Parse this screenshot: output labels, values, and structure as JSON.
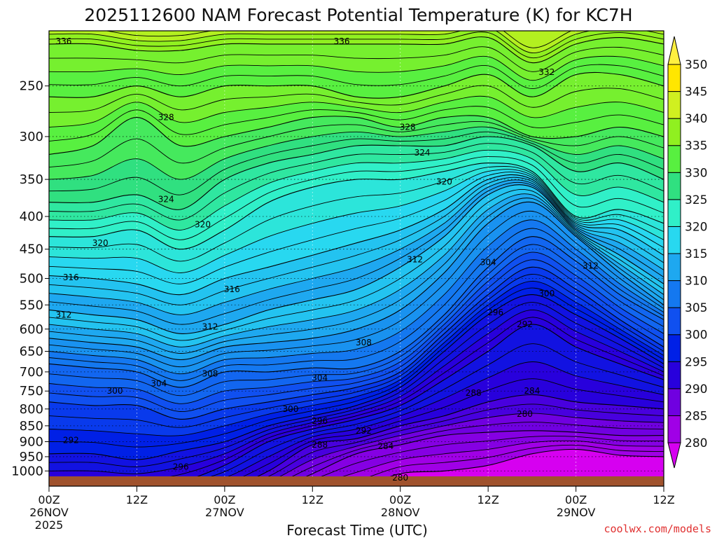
{
  "chart_data": {
    "type": "heatmap",
    "title": "2025112600 NAM Forecast Potential Temperature (K) for KC7H",
    "xlabel": "Forecast Time (UTC)",
    "ylabel": "",
    "credit": "coolwx.com/models",
    "y_scale": "log-pressure",
    "ylim": [
      1030,
      205
    ],
    "xlim_hours": [
      0,
      84
    ],
    "x_ticks": [
      {
        "hour": 0,
        "l1": "00Z",
        "l2": "26NOV",
        "l3": "2025"
      },
      {
        "hour": 12,
        "l1": "12Z",
        "l2": "",
        "l3": ""
      },
      {
        "hour": 24,
        "l1": "00Z",
        "l2": "27NOV",
        "l3": ""
      },
      {
        "hour": 36,
        "l1": "12Z",
        "l2": "",
        "l3": ""
      },
      {
        "hour": 48,
        "l1": "00Z",
        "l2": "28NOV",
        "l3": ""
      },
      {
        "hour": 60,
        "l1": "12Z",
        "l2": "",
        "l3": ""
      },
      {
        "hour": 72,
        "l1": "00Z",
        "l2": "29NOV",
        "l3": ""
      },
      {
        "hour": 84,
        "l1": "12Z",
        "l2": "",
        "l3": ""
      }
    ],
    "y_ticks": [
      "250",
      "300",
      "350",
      "400",
      "450",
      "500",
      "550",
      "600",
      "650",
      "700",
      "750",
      "800",
      "850",
      "900",
      "950",
      "1000"
    ],
    "colorbar": {
      "levels": [
        "280",
        "285",
        "290",
        "295",
        "300",
        "305",
        "310",
        "315",
        "320",
        "325",
        "330",
        "335",
        "340",
        "345",
        "350"
      ],
      "colors": [
        "#d600f0",
        "#a000e6",
        "#7000e0",
        "#2800dc",
        "#0020e6",
        "#1050f0",
        "#1478f0",
        "#1ea8f0",
        "#28d8f0",
        "#30f0c8",
        "#30e080",
        "#58f040",
        "#90f020",
        "#d0f020",
        "#ffe600",
        "#fff040"
      ]
    },
    "x_hours": [
      0,
      6,
      12,
      18,
      24,
      30,
      36,
      42,
      48,
      54,
      60,
      66,
      72,
      78,
      84
    ],
    "isentropes": [
      {
        "theta": 280,
        "p": [
          1100,
          1100,
          1100,
          1100,
          1100,
          1100,
          1100,
          1070,
          1010,
          1000,
          980,
          940,
          925,
          945,
          950
        ]
      },
      {
        "theta": 284,
        "p": [
          1100,
          1100,
          1100,
          1100,
          1100,
          1080,
          1010,
          940,
          910,
          880,
          870,
          865,
          870,
          880,
          880
        ]
      },
      {
        "theta": 288,
        "p": [
          1100,
          1100,
          1100,
          1080,
          1070,
          1000,
          910,
          890,
          850,
          820,
          780,
          760,
          780,
          790,
          800
        ]
      },
      {
        "theta": 292,
        "p": [
          1060,
          1060,
          1060,
          1040,
          980,
          900,
          860,
          830,
          790,
          720,
          650,
          590,
          640,
          680,
          720
        ]
      },
      {
        "theta": 296,
        "p": [
          940,
          940,
          960,
          930,
          900,
          850,
          820,
          790,
          740,
          650,
          570,
          530,
          570,
          620,
          680
        ]
      },
      {
        "theta": 300,
        "p": [
          780,
          790,
          790,
          830,
          800,
          780,
          760,
          740,
          700,
          610,
          530,
          480,
          520,
          580,
          640
        ]
      },
      {
        "theta": 304,
        "p": [
          680,
          690,
          700,
          740,
          700,
          700,
          690,
          690,
          650,
          570,
          480,
          430,
          470,
          530,
          580
        ]
      },
      {
        "theta": 308,
        "p": [
          620,
          630,
          640,
          670,
          640,
          630,
          620,
          600,
          560,
          490,
          410,
          380,
          430,
          490,
          550
        ]
      },
      {
        "theta": 312,
        "p": [
          560,
          570,
          580,
          610,
          590,
          560,
          540,
          520,
          480,
          430,
          370,
          360,
          420,
          460,
          510
        ]
      },
      {
        "theta": 316,
        "p": [
          495,
          500,
          510,
          530,
          500,
          480,
          460,
          440,
          420,
          390,
          350,
          350,
          410,
          420,
          460
        ]
      },
      {
        "theta": 320,
        "p": [
          430,
          430,
          420,
          450,
          420,
          380,
          360,
          350,
          350,
          340,
          330,
          340,
          400,
          390,
          410
        ]
      },
      {
        "theta": 324,
        "p": [
          380,
          380,
          370,
          390,
          350,
          330,
          320,
          310,
          310,
          310,
          300,
          310,
          340,
          330,
          350
        ]
      },
      {
        "theta": 328,
        "p": [
          320,
          310,
          280,
          310,
          300,
          290,
          280,
          280,
          290,
          280,
          280,
          300,
          300,
          290,
          300
        ]
      },
      {
        "theta": 332,
        "p": [
          260,
          260,
          250,
          260,
          250,
          250,
          250,
          260,
          260,
          250,
          240,
          260,
          240,
          240,
          250
        ]
      },
      {
        "theta": 336,
        "p": [
          215,
          215,
          220,
          220,
          215,
          215,
          215,
          215,
          215,
          215,
          210,
          230,
          215,
          210,
          215
        ]
      }
    ],
    "contour_labels": [
      {
        "text": "336",
        "hour": 2,
        "p": 213
      },
      {
        "text": "336",
        "hour": 40,
        "p": 213
      },
      {
        "text": "332",
        "hour": 68,
        "p": 238
      },
      {
        "text": "328",
        "hour": 16,
        "p": 280
      },
      {
        "text": "328",
        "hour": 49,
        "p": 290
      },
      {
        "text": "324",
        "hour": 51,
        "p": 318
      },
      {
        "text": "320",
        "hour": 54,
        "p": 353
      },
      {
        "text": "324",
        "hour": 16,
        "p": 376
      },
      {
        "text": "320",
        "hour": 21,
        "p": 412
      },
      {
        "text": "320",
        "hour": 7,
        "p": 440
      },
      {
        "text": "312",
        "hour": 50,
        "p": 467
      },
      {
        "text": "304",
        "hour": 60,
        "p": 472
      },
      {
        "text": "312",
        "hour": 74,
        "p": 478
      },
      {
        "text": "316",
        "hour": 3,
        "p": 498
      },
      {
        "text": "316",
        "hour": 25,
        "p": 520
      },
      {
        "text": "300",
        "hour": 68,
        "p": 528
      },
      {
        "text": "312",
        "hour": 2,
        "p": 570
      },
      {
        "text": "296",
        "hour": 61,
        "p": 565
      },
      {
        "text": "292",
        "hour": 65,
        "p": 590
      },
      {
        "text": "312",
        "hour": 22,
        "p": 595
      },
      {
        "text": "308",
        "hour": 43,
        "p": 630
      },
      {
        "text": "308",
        "hour": 22,
        "p": 705
      },
      {
        "text": "304",
        "hour": 15,
        "p": 730
      },
      {
        "text": "304",
        "hour": 37,
        "p": 715
      },
      {
        "text": "300",
        "hour": 9,
        "p": 750
      },
      {
        "text": "288",
        "hour": 58,
        "p": 755
      },
      {
        "text": "284",
        "hour": 66,
        "p": 750
      },
      {
        "text": "300",
        "hour": 33,
        "p": 800
      },
      {
        "text": "280",
        "hour": 65,
        "p": 815
      },
      {
        "text": "296",
        "hour": 37,
        "p": 835
      },
      {
        "text": "292",
        "hour": 43,
        "p": 865
      },
      {
        "text": "292",
        "hour": 3,
        "p": 895
      },
      {
        "text": "288",
        "hour": 37,
        "p": 910
      },
      {
        "text": "284",
        "hour": 46,
        "p": 915
      },
      {
        "text": "296",
        "hour": 18,
        "p": 985
      },
      {
        "text": "280",
        "hour": 48,
        "p": 1025
      }
    ]
  }
}
